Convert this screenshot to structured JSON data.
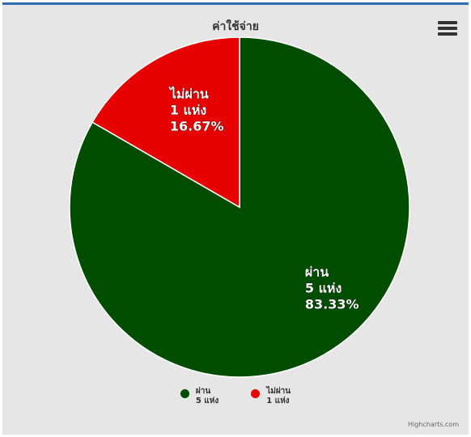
{
  "chart_data": {
    "type": "pie",
    "title": "ค่าใช้จ่าย",
    "slices": [
      {
        "name": "ผ่าน",
        "count_label": "5 แห่ง",
        "value": 5,
        "percent_label": "83.33%",
        "color": "#004d00"
      },
      {
        "name": "ไม่ผ่าน",
        "count_label": "1 แห่ง",
        "value": 1,
        "percent_label": "16.67%",
        "color": "#e60000"
      }
    ],
    "legend_position": "bottom"
  },
  "credits": "Highcharts.com"
}
